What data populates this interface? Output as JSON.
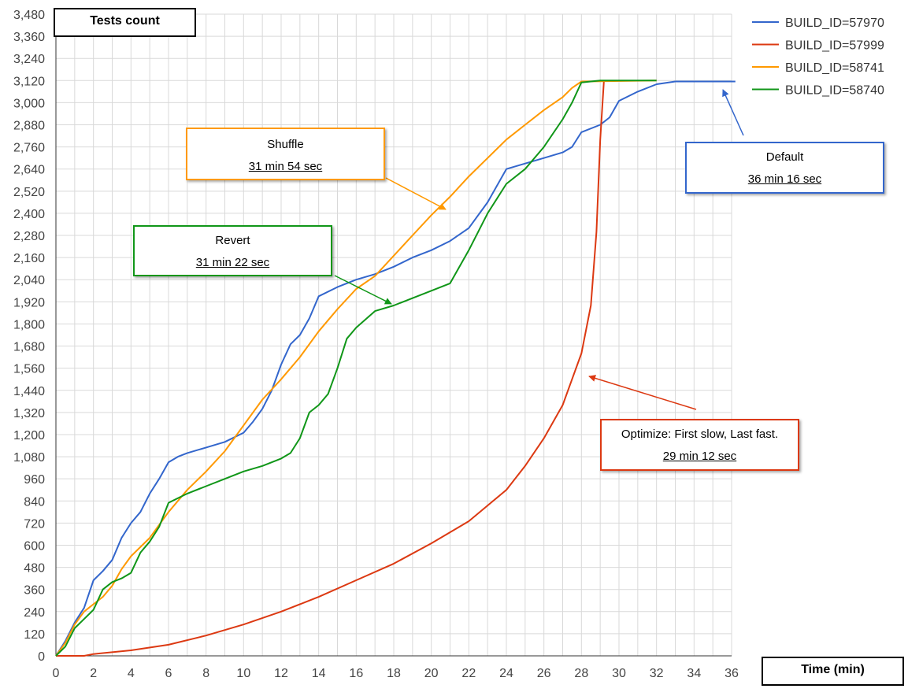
{
  "chart_data": {
    "type": "line",
    "ylabel": "Tests count",
    "xlabel": "Time (min)",
    "xlim": [
      0,
      36
    ],
    "ylim": [
      0,
      3480
    ],
    "xticks": [
      "0",
      "2",
      "4",
      "6",
      "8",
      "10",
      "12",
      "14",
      "16",
      "18",
      "20",
      "22",
      "24",
      "26",
      "28",
      "30",
      "32",
      "34",
      "36"
    ],
    "yticks": [
      "0",
      "120",
      "240",
      "360",
      "480",
      "600",
      "720",
      "840",
      "960",
      "1,080",
      "1,200",
      "1,320",
      "1,440",
      "1,560",
      "1,680",
      "1,800",
      "1,920",
      "2,040",
      "2,160",
      "2,280",
      "2,400",
      "2,520",
      "2,640",
      "2,760",
      "2,880",
      "3,000",
      "3,120",
      "3,240",
      "3,360",
      "3,480"
    ],
    "grid": true,
    "legend_position": "top-right",
    "series": [
      {
        "name": "BUILD_ID=57970",
        "color": "#3366CC",
        "points": [
          [
            0,
            0
          ],
          [
            0.5,
            80
          ],
          [
            1,
            180
          ],
          [
            1.5,
            260
          ],
          [
            2,
            410
          ],
          [
            2.5,
            460
          ],
          [
            3,
            520
          ],
          [
            3.5,
            640
          ],
          [
            4,
            720
          ],
          [
            4.5,
            780
          ],
          [
            5,
            880
          ],
          [
            5.5,
            960
          ],
          [
            6,
            1050
          ],
          [
            6.5,
            1080
          ],
          [
            7,
            1100
          ],
          [
            8,
            1130
          ],
          [
            9,
            1160
          ],
          [
            10,
            1210
          ],
          [
            10.5,
            1270
          ],
          [
            11,
            1340
          ],
          [
            11.5,
            1440
          ],
          [
            12,
            1580
          ],
          [
            12.5,
            1690
          ],
          [
            13,
            1740
          ],
          [
            13.5,
            1830
          ],
          [
            14,
            1950
          ],
          [
            15,
            2000
          ],
          [
            16,
            2040
          ],
          [
            17,
            2070
          ],
          [
            18,
            2110
          ],
          [
            19,
            2160
          ],
          [
            20,
            2200
          ],
          [
            21,
            2250
          ],
          [
            22,
            2320
          ],
          [
            23,
            2460
          ],
          [
            24,
            2640
          ],
          [
            25,
            2670
          ],
          [
            26,
            2700
          ],
          [
            27,
            2730
          ],
          [
            27.5,
            2760
          ],
          [
            28,
            2840
          ],
          [
            29,
            2880
          ],
          [
            29.5,
            2920
          ],
          [
            30,
            3010
          ],
          [
            31,
            3060
          ],
          [
            32,
            3100
          ],
          [
            33,
            3115
          ],
          [
            34,
            3115
          ],
          [
            36.2,
            3115
          ]
        ]
      },
      {
        "name": "BUILD_ID=57999",
        "color": "#DC3912",
        "points": [
          [
            0,
            0
          ],
          [
            1.5,
            0
          ],
          [
            2,
            10
          ],
          [
            4,
            30
          ],
          [
            6,
            60
          ],
          [
            8,
            110
          ],
          [
            10,
            170
          ],
          [
            12,
            240
          ],
          [
            14,
            320
          ],
          [
            16,
            410
          ],
          [
            18,
            500
          ],
          [
            20,
            610
          ],
          [
            22,
            730
          ],
          [
            24,
            900
          ],
          [
            25,
            1030
          ],
          [
            26,
            1180
          ],
          [
            27,
            1360
          ],
          [
            27.5,
            1500
          ],
          [
            28,
            1640
          ],
          [
            28.5,
            1900
          ],
          [
            28.8,
            2300
          ],
          [
            29,
            2800
          ],
          [
            29.2,
            3120
          ]
        ]
      },
      {
        "name": "BUILD_ID=58741",
        "color": "#FF9900",
        "points": [
          [
            0,
            0
          ],
          [
            0.5,
            70
          ],
          [
            1,
            170
          ],
          [
            1.5,
            240
          ],
          [
            2,
            280
          ],
          [
            2.5,
            320
          ],
          [
            3,
            380
          ],
          [
            3.5,
            470
          ],
          [
            4,
            540
          ],
          [
            5,
            640
          ],
          [
            6,
            780
          ],
          [
            7,
            900
          ],
          [
            8,
            1000
          ],
          [
            9,
            1110
          ],
          [
            10,
            1250
          ],
          [
            11,
            1390
          ],
          [
            12,
            1500
          ],
          [
            13,
            1620
          ],
          [
            14,
            1760
          ],
          [
            15,
            1880
          ],
          [
            16,
            1990
          ],
          [
            17,
            2060
          ],
          [
            18,
            2170
          ],
          [
            19,
            2280
          ],
          [
            20,
            2390
          ],
          [
            21,
            2490
          ],
          [
            22,
            2600
          ],
          [
            23,
            2700
          ],
          [
            24,
            2800
          ],
          [
            25,
            2880
          ],
          [
            26,
            2960
          ],
          [
            27,
            3030
          ],
          [
            27.5,
            3080
          ],
          [
            28,
            3115
          ],
          [
            32,
            3120
          ]
        ]
      },
      {
        "name": "BUILD_ID=58740",
        "color": "#109618",
        "points": [
          [
            0,
            0
          ],
          [
            0.5,
            50
          ],
          [
            1,
            150
          ],
          [
            1.5,
            200
          ],
          [
            2,
            250
          ],
          [
            2.5,
            360
          ],
          [
            3,
            400
          ],
          [
            3.5,
            420
          ],
          [
            4,
            450
          ],
          [
            4.5,
            560
          ],
          [
            5,
            620
          ],
          [
            5.5,
            700
          ],
          [
            6,
            830
          ],
          [
            7,
            880
          ],
          [
            8,
            920
          ],
          [
            9,
            960
          ],
          [
            10,
            1000
          ],
          [
            11,
            1030
          ],
          [
            12,
            1070
          ],
          [
            12.5,
            1100
          ],
          [
            13,
            1180
          ],
          [
            13.5,
            1320
          ],
          [
            14,
            1360
          ],
          [
            14.5,
            1420
          ],
          [
            15,
            1560
          ],
          [
            15.5,
            1720
          ],
          [
            16,
            1780
          ],
          [
            17,
            1870
          ],
          [
            18,
            1900
          ],
          [
            19,
            1940
          ],
          [
            20,
            1980
          ],
          [
            21,
            2020
          ],
          [
            22,
            2200
          ],
          [
            23,
            2400
          ],
          [
            24,
            2560
          ],
          [
            25,
            2640
          ],
          [
            26,
            2760
          ],
          [
            27,
            2910
          ],
          [
            27.5,
            3000
          ],
          [
            28,
            3110
          ],
          [
            29,
            3120
          ],
          [
            32,
            3120
          ]
        ]
      }
    ],
    "annotations": [
      {
        "title": "Shuffle",
        "subtitle": "31 min 54 sec",
        "color": "#FF9900"
      },
      {
        "title": "Revert",
        "subtitle": "31 min 22 sec",
        "color": "#109618"
      },
      {
        "title": "Default",
        "subtitle": "36 min 16 sec",
        "color": "#3366CC"
      },
      {
        "title": "Optimize: First slow, Last fast.",
        "subtitle": "29 min 12 sec",
        "color": "#DC3912"
      }
    ]
  }
}
